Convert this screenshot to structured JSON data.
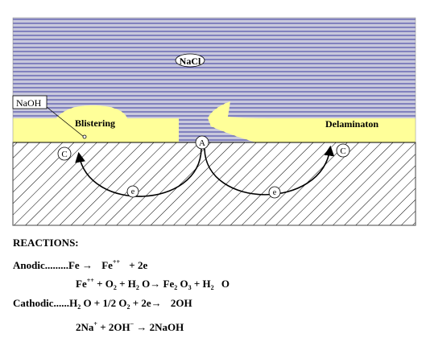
{
  "diagram": {
    "electrolyte_label": "NaCl",
    "naoh_label": "NaOH",
    "blistering_label": "Blistering",
    "delamination_label": "Delaminaton",
    "anode_label": "A",
    "cathode_left_label": "C",
    "cathode_right_label": "C",
    "electron_left_label": "e",
    "electron_right_label": "e",
    "colors": {
      "electrolyte": "#c8c8dc",
      "electrolyte_lines": "#3a3aa0",
      "coating": "#ffff99",
      "metal_hatch": "#000000",
      "background": "#ffffff"
    }
  },
  "reactions": {
    "title": "REACTIONS:",
    "anodic": {
      "label": "Anodic.........",
      "eq1": {
        "lhs": "Fe",
        "arrow": "→",
        "product": "Fe",
        "charge": "++",
        "plus_e": "+ 2e"
      },
      "eq2": {
        "fe": "Fe",
        "fe_charge": "++",
        "plus_o": "+ O",
        "o_sub": "2",
        "plus_h": "+ H",
        "h_sub": "2",
        "o_arrow": "O→",
        "fe2": "Fe",
        "fe2_sub": "2",
        "o3": "O",
        "o3_sub": "3",
        "plus_h2": "+ H",
        "h2_sub": "2",
        "o_end": "O"
      }
    },
    "cathodic": {
      "label": "Cathodic......",
      "eq1": {
        "h": "H",
        "h_sub": "2",
        "rest": "O + 1/2 O",
        "o_sub": "2",
        "plus": "+ 2e→",
        "prod": "2OH"
      },
      "eq2": {
        "na": "2Na",
        "na_charge": "+",
        "mid": "+ 2OH",
        "oh_charge": "−",
        "arrow": "→",
        "prod": "2NaOH"
      }
    }
  }
}
